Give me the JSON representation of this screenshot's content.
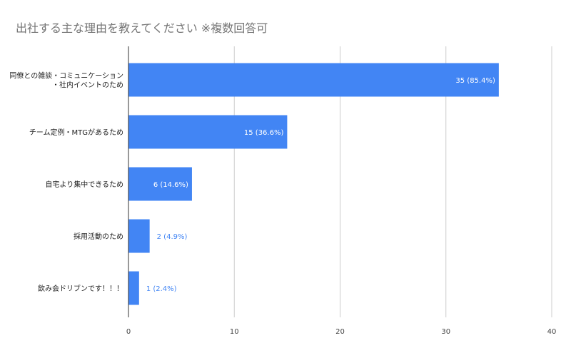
{
  "chart_data": {
    "type": "bar",
    "orientation": "horizontal",
    "title": "出社する主な理由を教えてください ※複数回答可",
    "categories": [
      [
        "同僚との雑談・コミュニケーション",
        "・社内イベントのため"
      ],
      [
        "チーム定例・MTGがあるため"
      ],
      [
        "自宅より集中できるため"
      ],
      [
        "採用活動のため"
      ],
      [
        "飲み会ドリブンです！！！"
      ]
    ],
    "values": [
      35,
      15,
      6,
      2,
      1
    ],
    "data_labels": [
      "35 (85.4%)",
      "15 (36.6%)",
      "6 (14.6%)",
      "2 (4.9%)",
      "1 (2.4%)"
    ],
    "xlim": [
      0,
      40
    ],
    "xticks": [
      0,
      10,
      20,
      30,
      40
    ],
    "grid": true,
    "legend": "none",
    "bar_color": "#4285f4"
  }
}
